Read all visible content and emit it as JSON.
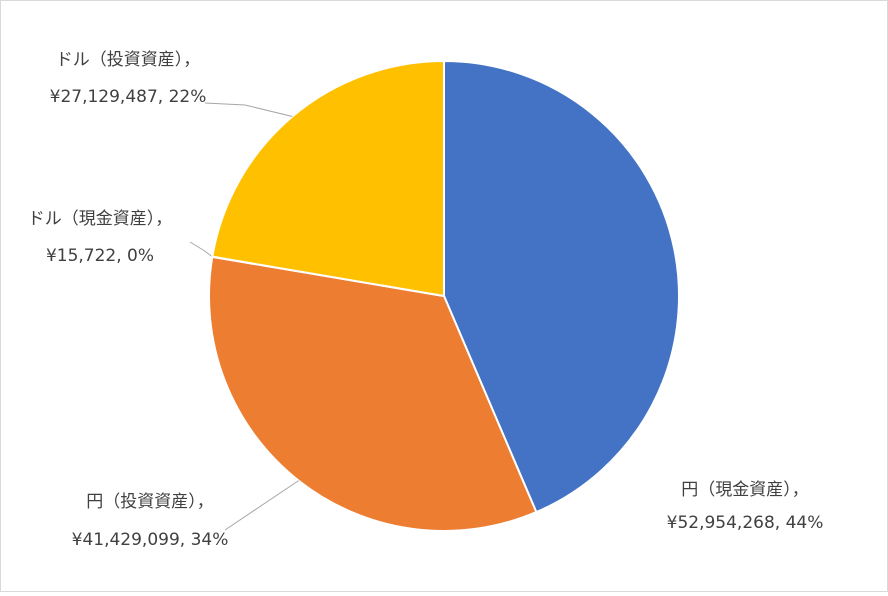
{
  "chart_data": {
    "type": "pie",
    "categories": [
      "円（現金資産），",
      "円（投資資産），",
      "ドル（現金資産），",
      "ドル（投資資産），"
    ],
    "values": [
      52954268,
      41429099,
      15722,
      27129487
    ],
    "value_labels": [
      "¥52,954,268, 44%",
      "¥41,429,099, 34%",
      "¥15,722, 0%",
      "¥27,129,487, 22%"
    ],
    "colors": [
      "#4472c4",
      "#ed7d31",
      "#a5a5a5",
      "#ffc000"
    ]
  }
}
